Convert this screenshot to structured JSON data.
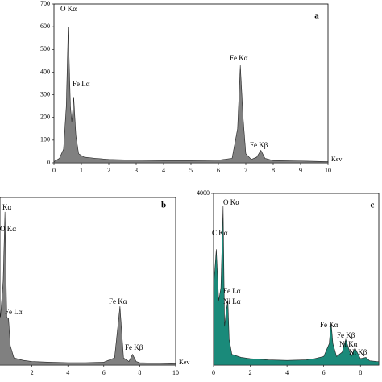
{
  "chart_data": [
    {
      "type": "area",
      "panel_label": "a",
      "x_label": "Kev",
      "color": "#808080",
      "xlim": [
        0,
        10
      ],
      "ylim": [
        0,
        700
      ],
      "xticks": [
        0,
        1,
        2,
        3,
        4,
        5,
        6,
        7,
        8,
        9,
        10
      ],
      "yticks": [
        0,
        100,
        200,
        300,
        400,
        500,
        600,
        700
      ],
      "annotations": [
        "O Kα",
        "Fe Lα",
        "Fe Kα",
        "Fe Kβ"
      ],
      "x": [
        0,
        0.2,
        0.35,
        0.45,
        0.52,
        0.6,
        0.65,
        0.72,
        0.8,
        0.9,
        1.1,
        1.5,
        2,
        3,
        4,
        5,
        6,
        6.5,
        6.7,
        6.8,
        6.9,
        7.0,
        7.2,
        7.4,
        7.55,
        7.7,
        8,
        9,
        10
      ],
      "values": [
        5,
        20,
        60,
        250,
        600,
        250,
        180,
        290,
        120,
        40,
        25,
        20,
        15,
        12,
        10,
        10,
        12,
        20,
        150,
        430,
        200,
        40,
        15,
        25,
        55,
        20,
        10,
        8,
        5
      ]
    },
    {
      "type": "area",
      "panel_label": "b",
      "x_label": "Kev",
      "color": "#808080",
      "xlim": [
        0,
        10
      ],
      "ylim": [
        0,
        700
      ],
      "xticks": [
        2,
        4,
        6,
        8,
        10
      ],
      "annotations": [
        "Kα",
        "O Kα",
        "Fe Lα",
        "Fe Kα",
        "Fe Kβ"
      ],
      "x": [
        0,
        0.25,
        0.4,
        0.5,
        0.6,
        0.7,
        0.8,
        1,
        1.5,
        2,
        3,
        4,
        5,
        6,
        6.6,
        6.9,
        7.1,
        7.4,
        7.6,
        7.8,
        8,
        9,
        10
      ],
      "values": [
        300,
        200,
        350,
        640,
        200,
        195,
        80,
        30,
        20,
        15,
        12,
        10,
        10,
        12,
        30,
        245,
        30,
        15,
        45,
        15,
        10,
        8,
        5
      ]
    },
    {
      "type": "area",
      "panel_label": "c",
      "color": "#1a8a7a",
      "xlim": [
        0,
        9
      ],
      "ylim": [
        0,
        4000
      ],
      "xticks": [
        0,
        2,
        4,
        6,
        8
      ],
      "yticks": [
        4000
      ],
      "annotations": [
        "O Kα",
        "C Kα",
        "Fe Lα",
        "Ni Lα",
        "Fe Kα",
        "Fe Kβ",
        "Ni Kα",
        "Ni Kβ"
      ],
      "x": [
        0,
        0.15,
        0.28,
        0.4,
        0.52,
        0.6,
        0.7,
        0.78,
        0.85,
        1,
        1.5,
        2,
        3,
        4,
        5,
        5.5,
        6,
        6.3,
        6.4,
        6.5,
        6.7,
        7,
        7.2,
        7.5,
        7.7,
        8,
        8.3,
        8.5,
        9
      ],
      "values": [
        1800,
        2700,
        1500,
        1800,
        3700,
        900,
        1300,
        1500,
        600,
        250,
        180,
        150,
        120,
        110,
        120,
        150,
        200,
        500,
        1000,
        500,
        200,
        300,
        600,
        200,
        400,
        150,
        180,
        100,
        80
      ]
    }
  ]
}
